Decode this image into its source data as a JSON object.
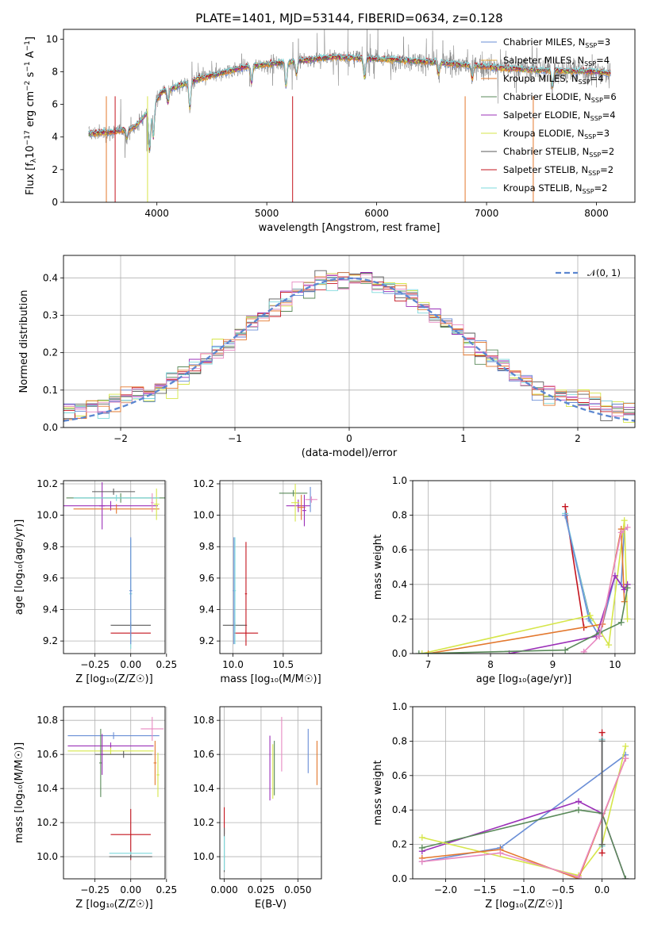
{
  "colors": {
    "Chabrier MILES": "#6a8ed6",
    "Salpeter MILES": "#e6a838",
    "Kroupa MILES": "#e3782e",
    "Chabrier ELODIE": "#5a8a5a",
    "Salpeter ELODIE": "#9b30b8",
    "Kroupa ELODIE": "#d6e64a",
    "Chabrier STELIB": "#5a5a5a",
    "Salpeter STELIB": "#c4141e",
    "Kroupa STELIB": "#7dd9dc",
    "pink": "#e88ac2",
    "gauss": "#5b86d0",
    "grid": "#b0b0b0"
  },
  "chart_data": [
    {
      "id": "spectrum",
      "type": "line",
      "title": "PLATE=1401, MJD=53144, FIBERID=0634, z=0.128",
      "xlabel": "wavelength [Angstrom, rest frame]",
      "ylabel": "Flux [f",
      "xlim": [
        3150,
        8350
      ],
      "ylim": [
        0,
        10.6
      ],
      "xticks": [
        4000,
        5000,
        6000,
        7000,
        8000
      ],
      "yticks": [
        0,
        2,
        4,
        6,
        8,
        10
      ],
      "legend_position": "upper right",
      "legend": [
        {
          "name": "Chabrier MILES",
          "nssp": "3"
        },
        {
          "name": "Salpeter MILES",
          "nssp": "4"
        },
        {
          "name": "Kroupa MILES",
          "nssp": "4"
        },
        {
          "name": "Chabrier ELODIE",
          "nssp": "6"
        },
        {
          "name": "Salpeter ELODIE",
          "nssp": "4"
        },
        {
          "name": "Kroupa ELODIE",
          "nssp": "3"
        },
        {
          "name": "Chabrier STELIB",
          "nssp": "2"
        },
        {
          "name": "Salpeter STELIB",
          "nssp": "2"
        },
        {
          "name": "Kroupa STELIB",
          "nssp": "2"
        }
      ],
      "continuum": {
        "x": [
          3380,
          3600,
          3800,
          3950,
          4050,
          4400,
          4800,
          5200,
          5600,
          6000,
          6500,
          7000,
          7500,
          8000,
          8130
        ],
        "y": [
          4.2,
          4.3,
          4.6,
          5.8,
          6.8,
          7.6,
          8.3,
          8.6,
          8.9,
          8.8,
          8.6,
          8.3,
          8.1,
          8.0,
          7.9
        ]
      }
    },
    {
      "id": "residuals",
      "type": "line",
      "xlabel": "(data-model)/error",
      "ylabel": "Normed distribution",
      "xlim": [
        -2.5,
        2.5
      ],
      "ylim": [
        0,
        0.46
      ],
      "xticks": [
        -2,
        -1,
        0,
        1,
        2
      ],
      "yticks": [
        0,
        0.1,
        0.2,
        0.3,
        0.4
      ],
      "legend_label": "𝒩(0, 1)",
      "grid": true
    },
    {
      "id": "age_vs_Z",
      "type": "scatter",
      "xlabel": "Z [log₁₀(Z/Z☉)]",
      "ylabel": "age  [log₁₀(age/yr)]",
      "xlim": [
        -0.47,
        0.24
      ],
      "ylim": [
        9.12,
        10.22
      ],
      "xticks": [
        -0.25,
        0.0,
        0.25
      ],
      "yticks": [
        9.2,
        9.4,
        9.6,
        9.8,
        10.0,
        10.2
      ],
      "points": [
        {
          "s": "Chabrier ELODIE",
          "x": -0.07,
          "y": 10.11,
          "xe": 0.38,
          "ye": 0.03
        },
        {
          "s": "Salpeter ELODIE",
          "x": -0.14,
          "y": 10.06,
          "xe": 0.33,
          "ye": 0.03
        },
        {
          "s": "Kroupa MILES",
          "x": -0.1,
          "y": 10.04,
          "xe": 0.3,
          "ye": 0.03
        },
        {
          "s": "Kroupa ELODIE",
          "x": 0.18,
          "y": 10.07,
          "xe": 0.02,
          "ye": 0.1
        },
        {
          "s": "Salpeter ELODIE",
          "x": -0.2,
          "y": 10.06,
          "xe": 0.02,
          "ye": 0.15
        },
        {
          "s": "Chabrier STELIB",
          "x": -0.12,
          "y": 10.15,
          "xe": 0.15,
          "ye": 0.02
        },
        {
          "s": "Chabrier STELIB",
          "x": 0.0,
          "y": 9.3,
          "xe": 0.14,
          "ye": 0.02
        },
        {
          "s": "Salpeter STELIB",
          "x": 0.0,
          "y": 9.25,
          "xe": 0.14,
          "ye": 0.02
        },
        {
          "s": "Kroupa STELIB",
          "x": 0.0,
          "y": 9.5,
          "xe": 0.01,
          "ye": 0.35
        },
        {
          "s": "Chabrier MILES",
          "x": 0.0,
          "y": 9.52,
          "xe": 0.01,
          "ye": 0.34
        },
        {
          "s": "Kroupa STELIB",
          "x": -0.1,
          "y": 10.11,
          "xe": 0.3,
          "ye": 0.02
        },
        {
          "s": "pink",
          "x": 0.15,
          "y": 10.08,
          "xe": 0.01,
          "ye": 0.06
        }
      ]
    },
    {
      "id": "age_vs_mass",
      "type": "scatter",
      "xlabel": "mass [log₁₀(M/M☉)]",
      "ylabel": "",
      "xlim": [
        9.87,
        10.88
      ],
      "ylim": [
        9.12,
        10.22
      ],
      "xticks": [
        10.0,
        10.5
      ],
      "yticks": [
        9.2,
        9.4,
        9.6,
        9.8,
        10.0,
        10.2
      ],
      "points": [
        {
          "s": "Chabrier ELODIE",
          "x": 10.6,
          "y": 10.14,
          "xe": 0.14,
          "ye": 0.02
        },
        {
          "s": "Salpeter ELODIE",
          "x": 10.65,
          "y": 10.06,
          "xe": 0.12,
          "ye": 0.04
        },
        {
          "s": "Kroupa ELODIE",
          "x": 10.62,
          "y": 10.08,
          "xe": 0.04,
          "ye": 0.12
        },
        {
          "s": "Kroupa MILES",
          "x": 10.68,
          "y": 10.05,
          "xe": 0.04,
          "ye": 0.08
        },
        {
          "s": "Salpeter ELODIE",
          "x": 10.71,
          "y": 10.03,
          "xe": 0.02,
          "ye": 0.1
        },
        {
          "s": "Chabrier MILES",
          "x": 10.77,
          "y": 10.1,
          "xe": 0.02,
          "ye": 0.08
        },
        {
          "s": "pink",
          "x": 10.78,
          "y": 10.1,
          "xe": 0.06,
          "ye": 0.02
        },
        {
          "s": "Chabrier STELIB",
          "x": 10.02,
          "y": 9.3,
          "xe": 0.12,
          "ye": 0.02
        },
        {
          "s": "Salpeter STELIB",
          "x": 10.13,
          "y": 9.25,
          "xe": 0.12,
          "ye": 0.02
        },
        {
          "s": "Salpeter STELIB",
          "x": 10.13,
          "y": 9.5,
          "xe": 0.01,
          "ye": 0.33
        },
        {
          "s": "Chabrier MILES",
          "x": 10.01,
          "y": 9.52,
          "xe": 0.01,
          "ye": 0.34
        },
        {
          "s": "Kroupa STELIB",
          "x": 10.02,
          "y": 9.52,
          "xe": 0.01,
          "ye": 0.34
        }
      ]
    },
    {
      "id": "mw_vs_age",
      "type": "line",
      "xlabel": "age  [log₁₀(age/yr)]",
      "ylabel": "mass weight",
      "xlim": [
        6.75,
        10.32
      ],
      "ylim": [
        0,
        1
      ],
      "xticks": [
        7,
        8,
        9,
        10
      ],
      "yticks": [
        0.0,
        0.2,
        0.4,
        0.6,
        0.8,
        1.0
      ],
      "series": [
        {
          "s": "Salpeter STELIB",
          "x": [
            9.2,
            9.5
          ],
          "y": [
            0.85,
            0.15
          ]
        },
        {
          "s": "Chabrier STELIB",
          "x": [
            9.2,
            9.6
          ],
          "y": [
            0.8,
            0.2
          ]
        },
        {
          "s": "Kroupa STELIB",
          "x": [
            9.2,
            9.6
          ],
          "y": [
            0.81,
            0.19
          ]
        },
        {
          "s": "Chabrier MILES",
          "x": [
            9.2,
            9.58,
            9.75,
            10.0,
            10.1,
            10.15
          ],
          "y": [
            0.8,
            0.2,
            0.1,
            0.45,
            0.4,
            0.72
          ]
        },
        {
          "s": "Kroupa ELODIE",
          "x": [
            6.9,
            9.6,
            9.9,
            10.15,
            10.2
          ],
          "y": [
            0.0,
            0.22,
            0.05,
            0.77,
            0.2
          ]
        },
        {
          "s": "Kroupa MILES",
          "x": [
            7.0,
            9.8,
            10.1,
            10.15
          ],
          "y": [
            0.0,
            0.17,
            0.72,
            0.3
          ]
        },
        {
          "s": "Salpeter ELODIE",
          "x": [
            8.3,
            9.7,
            10.0,
            10.15,
            10.2
          ],
          "y": [
            0.0,
            0.1,
            0.45,
            0.37,
            0.4
          ]
        },
        {
          "s": "Chabrier ELODIE",
          "x": [
            6.85,
            9.2,
            9.75,
            10.1,
            10.2
          ],
          "y": [
            0.0,
            0.02,
            0.12,
            0.18,
            0.38
          ]
        },
        {
          "s": "pink",
          "x": [
            9.5,
            9.75,
            10.1,
            10.2
          ],
          "y": [
            0.01,
            0.1,
            0.7,
            0.73
          ]
        }
      ]
    },
    {
      "id": "mass_vs_Z",
      "type": "scatter",
      "xlabel": "Z [log₁₀(Z/Z☉)]",
      "ylabel": "mass [log₁₀(M/M☉)]",
      "xlim": [
        -0.47,
        0.24
      ],
      "ylim": [
        9.87,
        10.88
      ],
      "xticks": [
        -0.25,
        0.0,
        0.25
      ],
      "yticks": [
        10.0,
        10.2,
        10.4,
        10.6,
        10.8
      ],
      "points": [
        {
          "s": "Chabrier MILES",
          "x": -0.12,
          "y": 10.71,
          "xe": 0.32,
          "ye": 0.02
        },
        {
          "s": "Salpeter ELODIE",
          "x": -0.14,
          "y": 10.65,
          "xe": 0.3,
          "ye": 0.02
        },
        {
          "s": "Kroupa ELODIE",
          "x": -0.14,
          "y": 10.62,
          "xe": 0.3,
          "ye": 0.02
        },
        {
          "s": "Chabrier STELIB",
          "x": -0.05,
          "y": 10.6,
          "xe": 0.2,
          "ye": 0.02
        },
        {
          "s": "Chabrier ELODIE",
          "x": -0.21,
          "y": 10.55,
          "xe": 0.01,
          "ye": 0.2
        },
        {
          "s": "Salpeter ELODIE",
          "x": -0.2,
          "y": 10.6,
          "xe": 0.01,
          "ye": 0.12
        },
        {
          "s": "pink",
          "x": 0.15,
          "y": 10.75,
          "xe": 0.08,
          "ye": 0.07
        },
        {
          "s": "Kroupa MILES",
          "x": 0.17,
          "y": 10.55,
          "xe": 0.01,
          "ye": 0.13
        },
        {
          "s": "Kroupa ELODIE",
          "x": 0.19,
          "y": 10.48,
          "xe": 0.01,
          "ye": 0.13
        },
        {
          "s": "Salpeter STELIB",
          "x": 0.0,
          "y": 10.13,
          "xe": 0.14,
          "ye": 0.15
        },
        {
          "s": "Kroupa STELIB",
          "x": 0.0,
          "y": 10.02,
          "xe": 0.15,
          "ye": 0.01
        },
        {
          "s": "Chabrier STELIB",
          "x": 0.0,
          "y": 10.0,
          "xe": 0.15,
          "ye": 0.01
        }
      ]
    },
    {
      "id": "mass_vs_EBV",
      "type": "scatter",
      "xlabel": "E(B-V)",
      "ylabel": "",
      "xlim": [
        -0.003,
        0.066
      ],
      "ylim": [
        9.87,
        10.88
      ],
      "xticks": [
        0.0,
        0.025,
        0.05
      ],
      "yticks": [
        10.0,
        10.2,
        10.4,
        10.6,
        10.8
      ],
      "points": [
        {
          "s": "Salpeter STELIB",
          "x": 0.0,
          "y": 10.21,
          "xe": 0.0,
          "ye": 0.08
        },
        {
          "s": "Chabrier STELIB",
          "x": 0.0,
          "y": 10.04,
          "xe": 0.0,
          "ye": 0.13
        },
        {
          "s": "Kroupa STELIB",
          "x": 0.0,
          "y": 10.02,
          "xe": 0.0,
          "ye": 0.1
        },
        {
          "s": "Salpeter ELODIE",
          "x": 0.031,
          "y": 10.52,
          "xe": 0.0,
          "ye": 0.19
        },
        {
          "s": "Kroupa ELODIE",
          "x": 0.033,
          "y": 10.5,
          "xe": 0.0,
          "ye": 0.16
        },
        {
          "s": "Chabrier ELODIE",
          "x": 0.034,
          "y": 10.52,
          "xe": 0.0,
          "ye": 0.16
        },
        {
          "s": "pink",
          "x": 0.039,
          "y": 10.66,
          "xe": 0.0,
          "ye": 0.16
        },
        {
          "s": "Chabrier MILES",
          "x": 0.057,
          "y": 10.62,
          "xe": 0.0,
          "ye": 0.13
        },
        {
          "s": "Kroupa MILES",
          "x": 0.063,
          "y": 10.55,
          "xe": 0.0,
          "ye": 0.13
        }
      ]
    },
    {
      "id": "mw_vs_Z",
      "type": "line",
      "xlabel": "Z [log₁₀(Z/Z☉)]",
      "ylabel": "mass weight",
      "xlim": [
        -2.42,
        0.42
      ],
      "ylim": [
        0,
        1
      ],
      "xticks": [
        -2.0,
        -1.5,
        -1.0,
        -0.5,
        0.0
      ],
      "yticks": [
        0.0,
        0.2,
        0.4,
        0.6,
        0.8,
        1.0
      ],
      "series": [
        {
          "s": "Chabrier MILES",
          "x": [
            -2.3,
            -1.3,
            0.3
          ],
          "y": [
            0.1,
            0.18,
            0.72
          ]
        },
        {
          "s": "Salpeter ELODIE",
          "x": [
            -2.3,
            -0.3,
            0.0,
            0.3
          ],
          "y": [
            0.16,
            0.45,
            0.38,
            0.0
          ]
        },
        {
          "s": "Chabrier ELODIE",
          "x": [
            -2.3,
            -0.3,
            0.0,
            0.3
          ],
          "y": [
            0.18,
            0.4,
            0.38,
            0.0
          ]
        },
        {
          "s": "Kroupa ELODIE",
          "x": [
            -2.3,
            -0.3,
            0.0,
            0.3
          ],
          "y": [
            0.24,
            0.02,
            0.2,
            0.77
          ]
        },
        {
          "s": "Kroupa MILES",
          "x": [
            -2.3,
            -1.3,
            -0.3,
            0.3
          ],
          "y": [
            0.12,
            0.17,
            0.0,
            0.7
          ]
        },
        {
          "s": "pink",
          "x": [
            -2.3,
            -1.3,
            -0.3,
            0.3
          ],
          "y": [
            0.1,
            0.15,
            0.01,
            0.7
          ]
        },
        {
          "s": "Salpeter STELIB",
          "x": [
            0.0,
            0.0
          ],
          "y": [
            0.85,
            0.15
          ]
        },
        {
          "s": "Kroupa STELIB",
          "x": [
            0.0,
            0.0
          ],
          "y": [
            0.81,
            0.19
          ]
        },
        {
          "s": "Chabrier STELIB",
          "x": [
            0.0,
            0.0
          ],
          "y": [
            0.8,
            0.2
          ]
        }
      ]
    }
  ]
}
